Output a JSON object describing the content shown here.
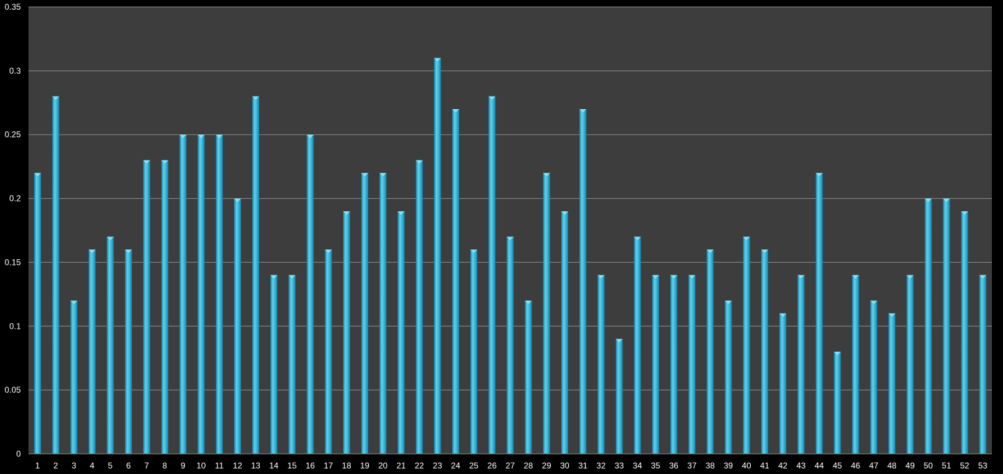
{
  "chart_data": {
    "type": "bar",
    "title": "",
    "xlabel": "",
    "ylabel": "",
    "categories": [
      "1",
      "2",
      "3",
      "4",
      "5",
      "6",
      "7",
      "8",
      "9",
      "10",
      "11",
      "12",
      "13",
      "14",
      "15",
      "16",
      "17",
      "18",
      "19",
      "20",
      "21",
      "22",
      "23",
      "24",
      "25",
      "26",
      "27",
      "28",
      "29",
      "30",
      "31",
      "32",
      "33",
      "34",
      "35",
      "36",
      "37",
      "38",
      "39",
      "40",
      "41",
      "42",
      "43",
      "44",
      "45",
      "46",
      "47",
      "48",
      "49",
      "50",
      "51",
      "52",
      "53"
    ],
    "values": [
      0.22,
      0.28,
      0.12,
      0.16,
      0.17,
      0.16,
      0.23,
      0.23,
      0.25,
      0.25,
      0.25,
      0.2,
      0.28,
      0.14,
      0.14,
      0.25,
      0.16,
      0.19,
      0.22,
      0.22,
      0.19,
      0.23,
      0.31,
      0.27,
      0.16,
      0.28,
      0.17,
      0.12,
      0.22,
      0.19,
      0.27,
      0.14,
      0.09,
      0.17,
      0.14,
      0.14,
      0.14,
      0.16,
      0.12,
      0.17,
      0.16,
      0.11,
      0.14,
      0.22,
      0.08,
      0.14,
      0.12,
      0.11,
      0.14,
      0.2,
      0.2,
      0.19,
      0.14
    ],
    "ylim": [
      0,
      0.35
    ],
    "yticks": [
      "0",
      "0.05",
      "0.1",
      "0.15",
      "0.2",
      "0.25",
      "0.3",
      "0.35"
    ],
    "grid": true,
    "legend": "none",
    "colors": {
      "background": "#000000",
      "plot_area": "#3d3d3d",
      "gridline": "#8a8a8a",
      "bar_light": "#5fd3ee",
      "bar_mid": "#2fb2d8",
      "bar_dark": "#1a7fa3",
      "text": "#ffffff"
    }
  }
}
